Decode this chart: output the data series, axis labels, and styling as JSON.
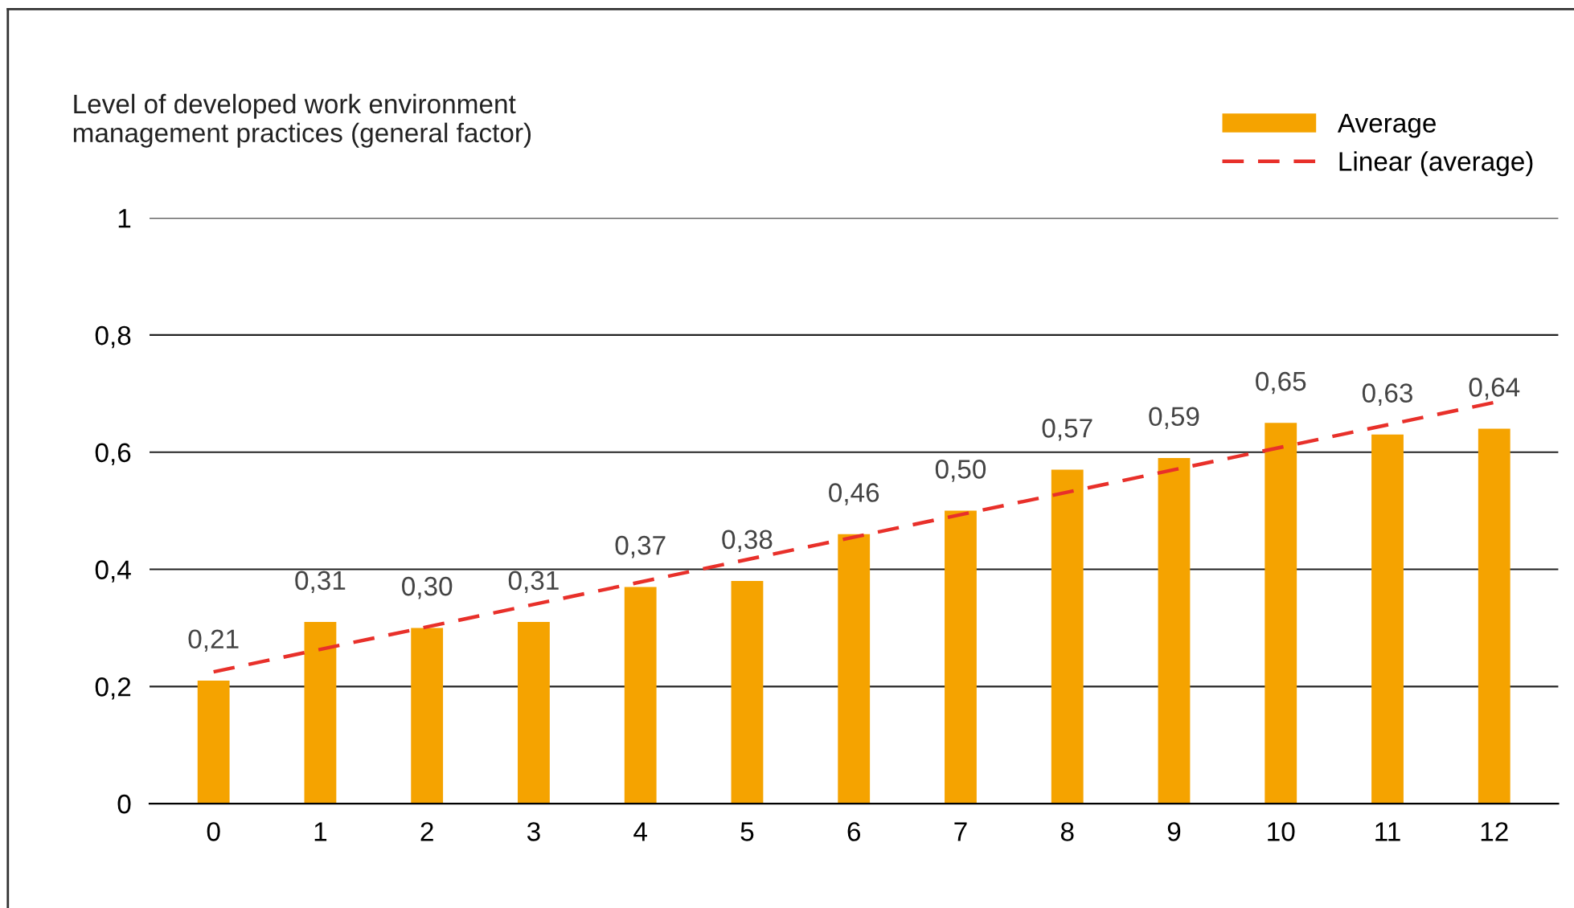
{
  "chart_data": {
    "type": "bar",
    "ylabel": "Level of developed work environment\nmanagement practices (general factor)",
    "categories": [
      "0",
      "1",
      "2",
      "3",
      "4",
      "5",
      "6",
      "7",
      "8",
      "9",
      "10",
      "11",
      "12"
    ],
    "series": [
      {
        "name": "Average",
        "color": "#f5a300",
        "values": [
          0.21,
          0.31,
          0.3,
          0.31,
          0.37,
          0.38,
          0.46,
          0.5,
          0.57,
          0.59,
          0.65,
          0.63,
          0.64
        ],
        "value_labels": [
          "0,21",
          "0,31",
          "0,30",
          "0,31",
          "0,37",
          "0,38",
          "0,46",
          "0,50",
          "0,57",
          "0,59",
          "0,65",
          "0,63",
          "0,64"
        ]
      },
      {
        "name": "Linear (average)",
        "type": "line",
        "color": "#e8302a",
        "line_style": "dashed",
        "x": [
          "0",
          "12"
        ],
        "values": [
          0.225,
          0.685
        ]
      }
    ],
    "ylim": [
      0,
      1
    ],
    "yticks": [
      0,
      {
        "value": 0.2,
        "label": "0,2"
      },
      {
        "value": 0.4,
        "label": "0,4"
      },
      {
        "value": 0.6,
        "label": "0,6"
      },
      {
        "value": 0.8,
        "label": "0,8"
      },
      1
    ],
    "grid": "y",
    "legend": "top right"
  }
}
